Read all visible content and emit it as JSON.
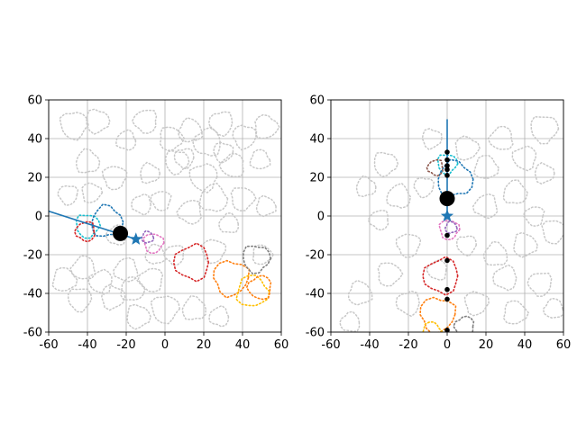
{
  "chart_data": [
    {
      "type": "scatter",
      "title": "",
      "xlabel": "",
      "ylabel": "",
      "xlim": [
        -60,
        60
      ],
      "ylim": [
        -60,
        60
      ],
      "xticks": [
        -60,
        -40,
        -20,
        0,
        20,
        40,
        60
      ],
      "yticks": [
        -60,
        -40,
        -20,
        0,
        20,
        40,
        60
      ],
      "grid": true,
      "background_shapes_color": "#c8c8c8",
      "background_shapes": [
        {
          "cx": -47,
          "cy": 47,
          "r": 7
        },
        {
          "cx": -35,
          "cy": 49,
          "r": 6
        },
        {
          "cx": -40,
          "cy": 28,
          "r": 6
        },
        {
          "cx": -20,
          "cy": 39,
          "r": 5
        },
        {
          "cx": -10,
          "cy": 49,
          "r": 6
        },
        {
          "cx": -26,
          "cy": 20,
          "r": 6
        },
        {
          "cx": 3,
          "cy": 40,
          "r": 6
        },
        {
          "cx": 13,
          "cy": 44,
          "r": 6
        },
        {
          "cx": 22,
          "cy": 38,
          "r": 7
        },
        {
          "cx": 29,
          "cy": 48,
          "r": 6
        },
        {
          "cx": 41,
          "cy": 41,
          "r": 6
        },
        {
          "cx": 52,
          "cy": 46,
          "r": 6
        },
        {
          "cx": 49,
          "cy": 29,
          "r": 5
        },
        {
          "cx": 35,
          "cy": 26,
          "r": 6
        },
        {
          "cx": 20,
          "cy": 20,
          "r": 7
        },
        {
          "cx": 6,
          "cy": 28,
          "r": 6
        },
        {
          "cx": -8,
          "cy": 22,
          "r": 5
        },
        {
          "cx": 25,
          "cy": 9,
          "r": 7
        },
        {
          "cx": 13,
          "cy": 2,
          "r": 6
        },
        {
          "cx": -2,
          "cy": 8,
          "r": 5
        },
        {
          "cx": 40,
          "cy": 9,
          "r": 6
        },
        {
          "cx": 52,
          "cy": 5,
          "r": 5
        },
        {
          "cx": 33,
          "cy": -4,
          "r": 5
        },
        {
          "cx": -12,
          "cy": 6,
          "r": 5
        },
        {
          "cx": -50,
          "cy": 11,
          "r": 5
        },
        {
          "cx": -38,
          "cy": 12,
          "r": 5
        },
        {
          "cx": -52,
          "cy": -33,
          "r": 6
        },
        {
          "cx": -42,
          "cy": -27,
          "r": 6
        },
        {
          "cx": -33,
          "cy": -34,
          "r": 6
        },
        {
          "cx": -44,
          "cy": -43,
          "r": 6
        },
        {
          "cx": -27,
          "cy": -42,
          "r": 6
        },
        {
          "cx": -17,
          "cy": -38,
          "r": 6
        },
        {
          "cx": -20,
          "cy": -28,
          "r": 6
        },
        {
          "cx": -7,
          "cy": -33,
          "r": 6
        },
        {
          "cx": 0,
          "cy": -48,
          "r": 7
        },
        {
          "cx": -14,
          "cy": -52,
          "r": 6
        },
        {
          "cx": 15,
          "cy": -48,
          "r": 6
        },
        {
          "cx": 28,
          "cy": -52,
          "r": 5
        },
        {
          "cx": 5,
          "cy": -20,
          "r": 5
        },
        {
          "cx": 25,
          "cy": -18,
          "r": 6
        },
        {
          "cx": 50,
          "cy": -20,
          "r": 5
        },
        {
          "cx": -5,
          "cy": -20,
          "r": 5
        },
        {
          "cx": -25,
          "cy": -10,
          "r": 5
        },
        {
          "cx": 10,
          "cy": 30,
          "r": 5
        },
        {
          "cx": 30,
          "cy": 33,
          "r": 5
        }
      ],
      "highlighted_shapes": [
        {
          "color": "#17becf",
          "cx": -40,
          "cy": -5,
          "r": 6
        },
        {
          "color": "#1f77b4",
          "cx": -30,
          "cy": -3,
          "r": 8
        },
        {
          "color": "#d62728",
          "cx": -41,
          "cy": -8,
          "r": 5
        },
        {
          "color": "#e377c2",
          "cx": -6,
          "cy": -14,
          "r": 5
        },
        {
          "color": "#9467bd",
          "cx": -9,
          "cy": -11,
          "r": 3
        },
        {
          "color": "#d62728",
          "cx": 14,
          "cy": -24,
          "r": 9
        },
        {
          "color": "#ff7f0e",
          "cx": 34,
          "cy": -32,
          "r": 9
        },
        {
          "color": "#ffbf00",
          "cx": 45,
          "cy": -39,
          "r": 8
        },
        {
          "color": "#ff7f0e",
          "cx": 49,
          "cy": -37,
          "r": 6
        },
        {
          "color": "#7f7f7f",
          "cx": 47,
          "cy": -22,
          "r": 7
        }
      ],
      "path_line": {
        "color": "#1f77b4",
        "x": [
          -60,
          -15
        ],
        "y": [
          2.5,
          -12
        ]
      },
      "agent_marker": {
        "x": -23,
        "y": -9
      },
      "star_marker": {
        "x": -15,
        "y": -12,
        "color": "#1f77b4"
      },
      "dots": []
    },
    {
      "type": "scatter",
      "title": "",
      "xlabel": "",
      "ylabel": "",
      "xlim": [
        -60,
        60
      ],
      "ylim": [
        -60,
        60
      ],
      "xticks": [
        -60,
        -40,
        -20,
        0,
        20,
        40,
        60
      ],
      "yticks": [
        -60,
        -40,
        -20,
        0,
        20,
        40,
        60
      ],
      "grid": true,
      "background_shapes_color": "#c8c8c8",
      "background_shapes": [
        {
          "cx": -32,
          "cy": 27,
          "r": 6
        },
        {
          "cx": -42,
          "cy": 15,
          "r": 5
        },
        {
          "cx": -25,
          "cy": 10,
          "r": 6
        },
        {
          "cx": -35,
          "cy": -2,
          "r": 5
        },
        {
          "cx": -20,
          "cy": -15,
          "r": 6
        },
        {
          "cx": -30,
          "cy": -30,
          "r": 6
        },
        {
          "cx": -45,
          "cy": -40,
          "r": 6
        },
        {
          "cx": -50,
          "cy": -55,
          "r": 5
        },
        {
          "cx": -20,
          "cy": -45,
          "r": 6
        },
        {
          "cx": -12,
          "cy": 15,
          "r": 5
        },
        {
          "cx": 10,
          "cy": 35,
          "r": 6
        },
        {
          "cx": 20,
          "cy": 25,
          "r": 6
        },
        {
          "cx": 28,
          "cy": 40,
          "r": 6
        },
        {
          "cx": 40,
          "cy": 30,
          "r": 6
        },
        {
          "cx": 50,
          "cy": 45,
          "r": 7
        },
        {
          "cx": 50,
          "cy": 22,
          "r": 5
        },
        {
          "cx": 35,
          "cy": 12,
          "r": 6
        },
        {
          "cx": 20,
          "cy": 5,
          "r": 6
        },
        {
          "cx": 45,
          "cy": 0,
          "r": 5
        },
        {
          "cx": 55,
          "cy": -8,
          "r": 6
        },
        {
          "cx": 40,
          "cy": -15,
          "r": 6
        },
        {
          "cx": 25,
          "cy": -20,
          "r": 6
        },
        {
          "cx": 30,
          "cy": -32,
          "r": 6
        },
        {
          "cx": 48,
          "cy": -35,
          "r": 6
        },
        {
          "cx": 15,
          "cy": -45,
          "r": 6
        },
        {
          "cx": 35,
          "cy": -50,
          "r": 6
        },
        {
          "cx": 55,
          "cy": -48,
          "r": 5
        },
        {
          "cx": -5,
          "cy": -28,
          "r": 5
        },
        {
          "cx": 10,
          "cy": -15,
          "r": 5
        },
        {
          "cx": -8,
          "cy": 40,
          "r": 5
        }
      ],
      "highlighted_shapes": [
        {
          "color": "#17becf",
          "cx": 0,
          "cy": 27,
          "r": 5
        },
        {
          "color": "#1f77b4",
          "cx": 4,
          "cy": 19,
          "r": 9
        },
        {
          "color": "#8c564b",
          "cx": -6,
          "cy": 25,
          "r": 4
        },
        {
          "color": "#e377c2",
          "cx": 1,
          "cy": -7,
          "r": 5
        },
        {
          "color": "#9467bd",
          "cx": 2,
          "cy": -6,
          "r": 3
        },
        {
          "color": "#d62728",
          "cx": -3,
          "cy": -31,
          "r": 9
        },
        {
          "color": "#ff7f0e",
          "cx": -5,
          "cy": -51,
          "r": 9
        },
        {
          "color": "#ffbf00",
          "cx": -8,
          "cy": -60,
          "r": 5
        },
        {
          "color": "#7f7f7f",
          "cx": 9,
          "cy": -57,
          "r": 5
        }
      ],
      "path_line": {
        "color": "#1f77b4",
        "x": [
          0,
          0
        ],
        "y": [
          50,
          -1
        ]
      },
      "agent_marker": {
        "x": 0,
        "y": 9
      },
      "star_marker": {
        "x": 0,
        "y": 0,
        "color": "#1f77b4"
      },
      "dots": [
        {
          "x": 0,
          "y": 33
        },
        {
          "x": 0,
          "y": 29
        },
        {
          "x": 0,
          "y": 26
        },
        {
          "x": 0,
          "y": 24
        },
        {
          "x": 0,
          "y": 21
        },
        {
          "x": 0,
          "y": -10
        },
        {
          "x": 0,
          "y": -23
        },
        {
          "x": 0,
          "y": -38
        },
        {
          "x": 0,
          "y": -43
        },
        {
          "x": 0,
          "y": -59
        }
      ]
    }
  ]
}
